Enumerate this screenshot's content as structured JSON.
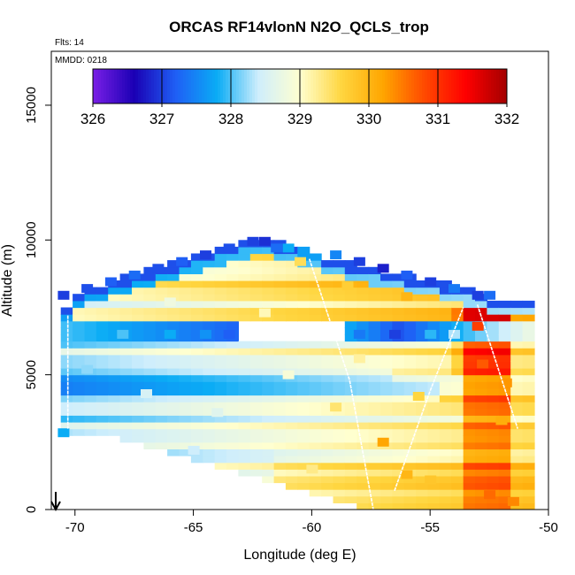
{
  "chart_data": {
    "type": "heatmap",
    "title": "ORCAS RF14vlonN N2O_QCLS_trop",
    "flights_note": "Flts: 14",
    "date_note": "MMDD: 0218",
    "xlabel": "Longitude (deg E)",
    "ylabel": "Altitude (m)",
    "xlim": [
      -71,
      -50
    ],
    "ylim": [
      0,
      17000
    ],
    "x_ticks": [
      -70,
      -65,
      -60,
      -55,
      -50
    ],
    "x_tick_labels": [
      "-70",
      "-65",
      "-60",
      "-55",
      "-50"
    ],
    "y_ticks": [
      0,
      5000,
      10000,
      15000
    ],
    "y_tick_labels": [
      "0",
      "5000",
      "10000",
      "15000"
    ],
    "colorbar": {
      "min": 326,
      "max": 332,
      "ticks": [
        326,
        327,
        328,
        329,
        330,
        331,
        332
      ],
      "tick_labels": [
        "326",
        "327",
        "328",
        "329",
        "330",
        "331",
        "332"
      ],
      "stops": [
        "#7a1fe6",
        "#1a00b4",
        "#1f5ff5",
        "#0aacf5",
        "#cfeefc",
        "#ffffd0",
        "#ffd640",
        "#ffa600",
        "#ff4a00",
        "#ff0000",
        "#a30000"
      ]
    },
    "cells": [
      [
        -62.5,
        9950,
        327.0
      ],
      [
        -62.0,
        9950,
        326.9
      ],
      [
        -61.5,
        9700,
        327.3
      ],
      [
        -61.0,
        9700,
        327.8
      ],
      [
        -63.5,
        9700,
        327.1
      ],
      [
        -64.5,
        9450,
        327.0
      ],
      [
        -65.5,
        9200,
        327.2
      ],
      [
        -66.5,
        8950,
        327.1
      ],
      [
        -67.5,
        8700,
        327.3
      ],
      [
        -68.5,
        8450,
        327.2
      ],
      [
        -69.5,
        8200,
        327.1
      ],
      [
        -70.5,
        7950,
        327.0
      ],
      [
        -59.0,
        9450,
        327.5
      ],
      [
        -58.0,
        9200,
        327.0
      ],
      [
        -57.0,
        8950,
        326.8
      ],
      [
        -56.0,
        8700,
        327.2
      ],
      [
        -55.0,
        8450,
        327.0
      ],
      [
        -54.0,
        8200,
        327.4
      ],
      [
        -53.0,
        7950,
        327.0
      ],
      [
        -52.5,
        7950,
        327.3
      ],
      [
        -68.0,
        6500,
        328.0
      ],
      [
        -66.0,
        6500,
        327.8
      ],
      [
        -64.5,
        6500,
        327.6
      ],
      [
        -63.5,
        6500,
        327.2
      ],
      [
        -58.0,
        6500,
        327.4
      ],
      [
        -56.5,
        6500,
        327.0
      ],
      [
        -55.0,
        6500,
        327.9
      ],
      [
        -54.0,
        6500,
        328.3
      ],
      [
        -70.5,
        2850,
        327.8
      ],
      [
        -65.0,
        2200,
        328.4
      ],
      [
        -60.0,
        1500,
        329.3
      ],
      [
        -55.0,
        1100,
        329.8
      ],
      [
        -53.0,
        6800,
        330.9
      ],
      [
        -52.8,
        5400,
        330.7
      ],
      [
        -51.8,
        4700,
        330.3
      ],
      [
        -52.0,
        3300,
        330.1
      ],
      [
        -52.5,
        550,
        330.6
      ],
      [
        -51.5,
        300,
        330.4
      ],
      [
        -56.0,
        7900,
        330.0
      ],
      [
        -58.5,
        8300,
        329.7
      ],
      [
        -60.5,
        9200,
        329.5
      ],
      [
        -57.0,
        2500,
        330.2
      ],
      [
        -56.0,
        1300,
        330.0
      ],
      [
        -59.0,
        3800,
        329.4
      ],
      [
        -62.0,
        7300,
        329.1
      ],
      [
        -66.0,
        7700,
        328.8
      ],
      [
        -69.5,
        5200,
        328.2
      ],
      [
        -67.0,
        4300,
        328.5
      ],
      [
        -64.0,
        3600,
        328.6
      ],
      [
        -61.0,
        5000,
        328.9
      ],
      [
        -58.0,
        5600,
        329.2
      ],
      [
        -55.5,
        4200,
        329.6
      ]
    ]
  }
}
